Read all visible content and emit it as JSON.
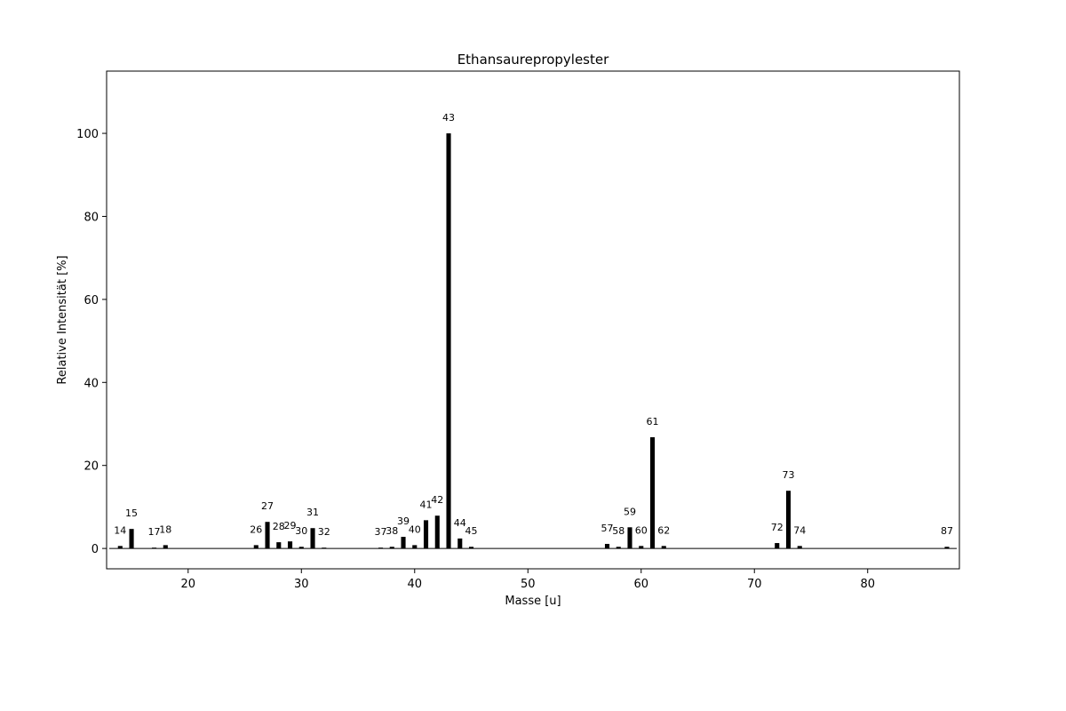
{
  "chart_data": {
    "type": "bar",
    "title": "Ethansaurepropylester",
    "x_label": "Masse [u]",
    "y_label": "Relative Intensität [%]",
    "x": [
      14,
      15,
      17,
      18,
      26,
      27,
      28,
      29,
      30,
      31,
      32,
      37,
      38,
      39,
      40,
      41,
      42,
      43,
      44,
      45,
      57,
      58,
      59,
      60,
      61,
      62,
      72,
      73,
      74,
      87
    ],
    "values": [
      0.6,
      4.7,
      0.2,
      0.8,
      0.8,
      6.4,
      1.5,
      1.7,
      0.4,
      4.9,
      0.2,
      0.2,
      0.4,
      2.8,
      0.8,
      6.8,
      7.9,
      100,
      2.4,
      0.4,
      1.1,
      0.4,
      5.1,
      0.6,
      26.8,
      0.6,
      1.3,
      13.9,
      0.6,
      0.4
    ],
    "color": "#000000",
    "xlim": [
      12.8,
      88.1
    ],
    "ylim": [
      -4.9,
      115
    ],
    "xticks": [
      20,
      30,
      40,
      50,
      60,
      70,
      80
    ],
    "yticks": [
      0,
      20,
      40,
      60,
      80,
      100
    ]
  }
}
